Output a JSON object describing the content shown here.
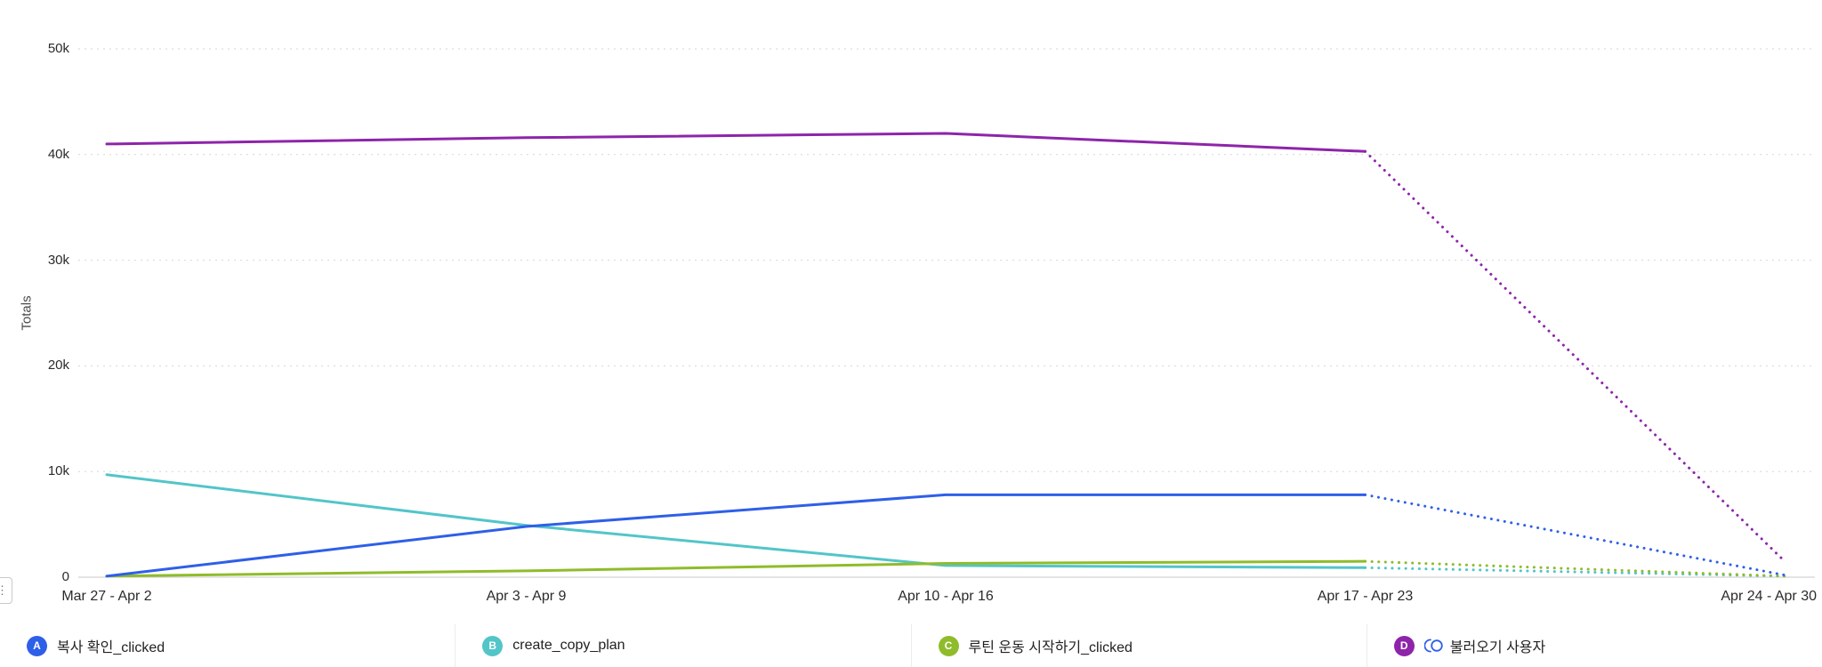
{
  "chart_data": {
    "type": "line",
    "title": "",
    "xlabel": "",
    "ylabel": "Totals",
    "x_categories": [
      "Mar 27 - Apr 2",
      "Apr 3 - Apr 9",
      "Apr 10 - Apr 16",
      "Apr 17 - Apr 23",
      "Apr 24 - Apr 30"
    ],
    "ytick_labels": [
      "0",
      "10k",
      "20k",
      "30k",
      "40k",
      "50k"
    ],
    "ytick_values": [
      0,
      10000,
      20000,
      30000,
      40000,
      50000
    ],
    "ylim": [
      0,
      50000
    ],
    "grid": "dotted-horizontal",
    "legend_position": "bottom",
    "incomplete_last_segment_style": "dotted",
    "series": [
      {
        "id": "A",
        "name": "복사 확인_clicked",
        "color": "#2e5fe8",
        "values": [
          100,
          4800,
          7800,
          7800,
          200
        ]
      },
      {
        "id": "B",
        "name": "create_copy_plan",
        "color": "#52c5c9",
        "values": [
          9700,
          4900,
          1100,
          900,
          100
        ]
      },
      {
        "id": "C",
        "name": "루틴 운동 시작하기_clicked",
        "color": "#8fbc2a",
        "values": [
          100,
          600,
          1300,
          1500,
          100
        ]
      },
      {
        "id": "D",
        "name": "불러오기 사용자",
        "color": "#8e24aa",
        "values": [
          41000,
          41600,
          42000,
          40300,
          1500
        ],
        "icon": "cohort-icon",
        "icon_color": "#2e5fe8"
      }
    ]
  },
  "corner_widget": {
    "icon": "dots-icon",
    "glyph": "⋮"
  }
}
